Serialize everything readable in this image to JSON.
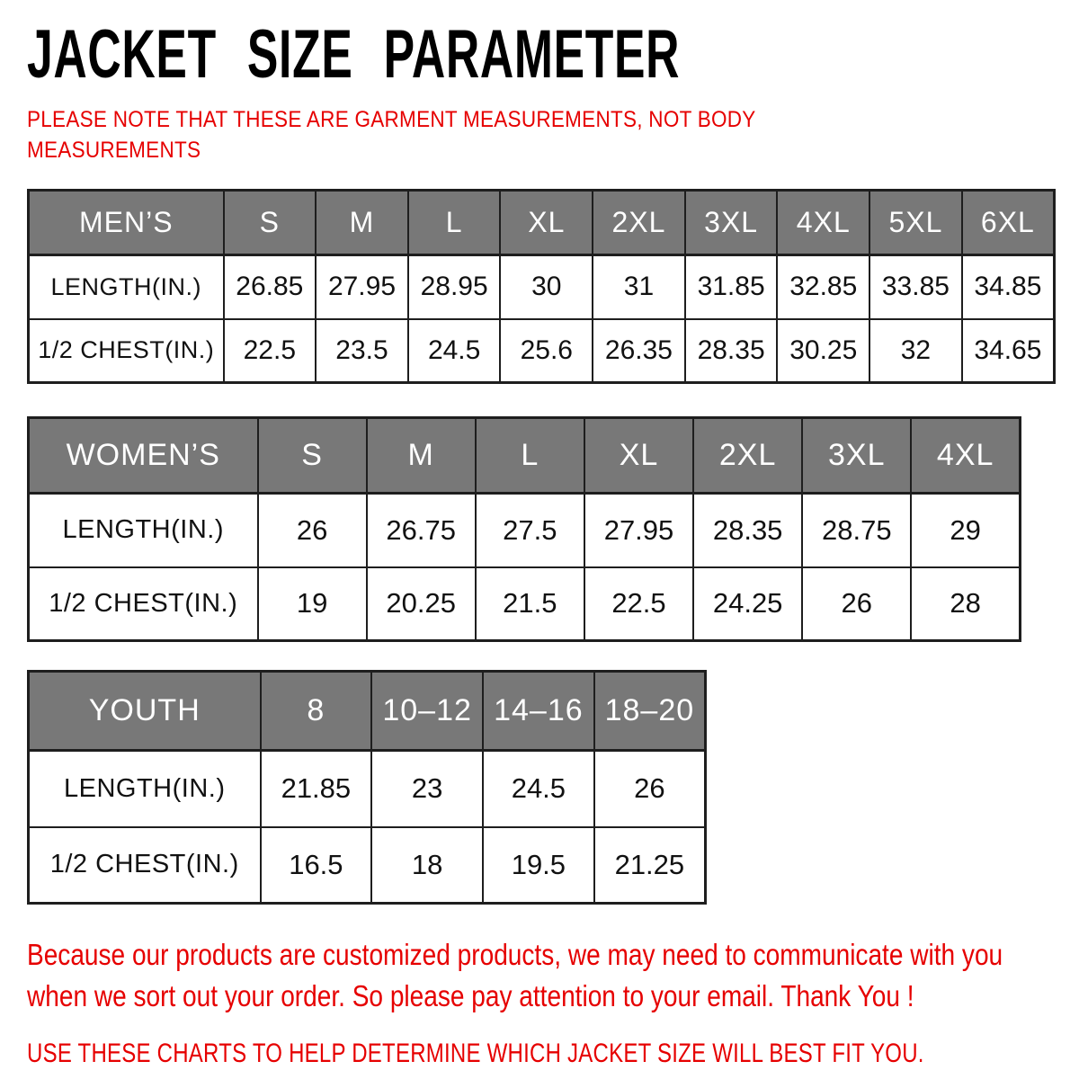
{
  "title": "JACKET SIZE PARAMETER",
  "note_lines": [
    "PLEASE NOTE THAT THESE ARE GARMENT MEASUREMENTS, NOT BODY",
    "MEASUREMENTS"
  ],
  "tables": {
    "mens": {
      "header": [
        "MEN’S",
        "S",
        "M",
        "L",
        "XL",
        "2XL",
        "3XL",
        "4XL",
        "5XL",
        "6XL"
      ],
      "rows": [
        {
          "label": "LENGTH(IN.)",
          "values": [
            "26.85",
            "27.95",
            "28.95",
            "30",
            "31",
            "31.85",
            "32.85",
            "33.85",
            "34.85"
          ]
        },
        {
          "label": "1/2 CHEST(IN.)",
          "values": [
            "22.5",
            "23.5",
            "24.5",
            "25.6",
            "26.35",
            "28.35",
            "30.25",
            "32",
            "34.65"
          ]
        }
      ]
    },
    "womens": {
      "header": [
        "WOMEN’S",
        "S",
        "M",
        "L",
        "XL",
        "2XL",
        "3XL",
        "4XL"
      ],
      "rows": [
        {
          "label": "LENGTH(IN.)",
          "values": [
            "26",
            "26.75",
            "27.5",
            "27.95",
            "28.35",
            "28.75",
            "29"
          ]
        },
        {
          "label": "1/2 CHEST(IN.)",
          "values": [
            "19",
            "20.25",
            "21.5",
            "22.5",
            "24.25",
            "26",
            "28"
          ]
        }
      ]
    },
    "youth": {
      "header": [
        "YOUTH",
        "8",
        "10–12",
        "14–16",
        "18–20"
      ],
      "rows": [
        {
          "label": "LENGTH(IN.)",
          "values": [
            "21.85",
            "23",
            "24.5",
            "26"
          ]
        },
        {
          "label": "1/2 CHEST(IN.)",
          "values": [
            "16.5",
            "18",
            "19.5",
            "21.25"
          ]
        }
      ]
    }
  },
  "footer_lines": [
    "Because our products are customized products, we may need to communicate with you",
    "when we sort out your order. So please pay attention to your email. Thank You !"
  ],
  "footer_caption": "USE THESE CHARTS TO HELP DETERMINE WHICH JACKET SIZE WILL BEST FIT YOU.",
  "colors": {
    "accent_red": "#e60000",
    "header_bg": "#787878",
    "header_text": "#ffffff",
    "grid_border": "#1e1e1e",
    "title_black": "#000000",
    "page_bg": "#ffffff"
  }
}
